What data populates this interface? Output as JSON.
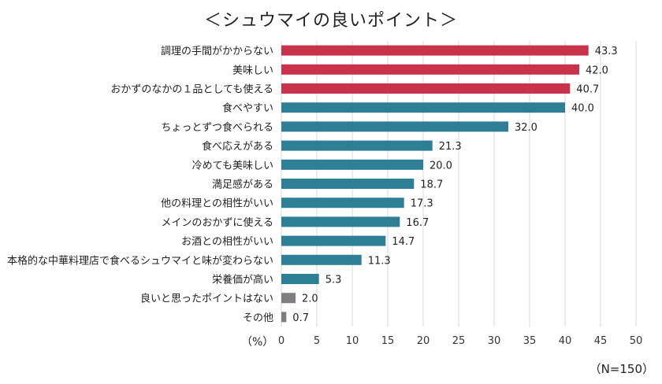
{
  "chart_data": {
    "type": "bar",
    "orientation": "horizontal",
    "title": "＜シュウマイの良いポイント＞",
    "xlabel": "（%）",
    "note": "（N=150）",
    "xlim": [
      0,
      50
    ],
    "xticks": [
      0,
      5,
      10,
      15,
      20,
      25,
      30,
      35,
      40,
      45,
      50
    ],
    "grid": true,
    "categories": [
      "調理の手間がかからない",
      "美味しい",
      "おかずのなかの１品としても使える",
      "食べやすい",
      "ちょっとずつ食べられる",
      "食べ応えがある",
      "冷めても美味しい",
      "満足感がある",
      "他の料理との相性がいい",
      "メインのおかずに使える",
      "お酒との相性がいい",
      "本格的な中華料理店で食べるシュウマイと味が変わらない",
      "栄養価が高い",
      "良いと思ったポイントはない",
      "その他"
    ],
    "values": [
      43.3,
      42.0,
      40.7,
      40.0,
      32.0,
      21.3,
      20.0,
      18.7,
      17.3,
      16.7,
      14.7,
      11.3,
      5.3,
      2.0,
      0.7
    ],
    "value_labels": [
      "43.3",
      "42.0",
      "40.7",
      "40.0",
      "32.0",
      "21.3",
      "20.0",
      "18.7",
      "17.3",
      "16.7",
      "14.7",
      "11.3",
      "5.3",
      "2.0",
      "0.7"
    ],
    "bar_colors": [
      "#c8324a",
      "#c8324a",
      "#c8324a",
      "#2e7f96",
      "#2e7f96",
      "#2e7f96",
      "#2e7f96",
      "#2e7f96",
      "#2e7f96",
      "#2e7f96",
      "#2e7f96",
      "#2e7f96",
      "#2e7f96",
      "#7f7f7f",
      "#7f7f7f"
    ],
    "colors": {
      "highlight": "#c8324a",
      "main": "#2e7f96",
      "other": "#7f7f7f",
      "grid": "#d9d9d9"
    }
  }
}
